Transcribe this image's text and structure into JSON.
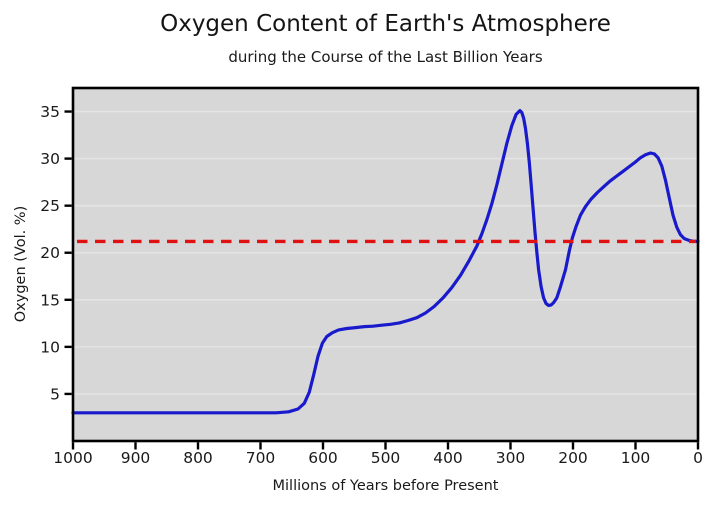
{
  "chart_data": {
    "type": "line",
    "title": "Oxygen Content of Earth's Atmosphere",
    "subtitle": "during the Course of the Last Billion Years",
    "xlabel": "Millions of Years before Present",
    "ylabel": "Oxygen (Vol. %)",
    "xlim": [
      1000,
      0
    ],
    "ylim": [
      0,
      37.5
    ],
    "x_ticks": [
      1000,
      900,
      800,
      700,
      600,
      500,
      400,
      300,
      200,
      100,
      0
    ],
    "y_ticks": [
      5,
      10,
      15,
      20,
      25,
      30,
      35
    ],
    "grid": "horizontal-only",
    "legend": "none",
    "colors": {
      "plot_background": "#d7d7d7",
      "grid_line": "#e4e4e4",
      "axis": "#000000",
      "oxygen_curve": "#1a1acd",
      "reference_line": "#e01111"
    },
    "series": [
      {
        "name": "oxygen-content-curve",
        "type": "line",
        "color": "#1a1acd",
        "stroke_width": 3.2,
        "points": [
          [
            1000,
            3.0
          ],
          [
            950,
            3.0
          ],
          [
            900,
            3.0
          ],
          [
            850,
            3.0
          ],
          [
            800,
            3.0
          ],
          [
            750,
            3.0
          ],
          [
            700,
            3.0
          ],
          [
            675,
            3.0
          ],
          [
            655,
            3.1
          ],
          [
            640,
            3.4
          ],
          [
            630,
            4.0
          ],
          [
            622,
            5.2
          ],
          [
            615,
            7.0
          ],
          [
            608,
            9.0
          ],
          [
            601,
            10.4
          ],
          [
            594,
            11.1
          ],
          [
            585,
            11.5
          ],
          [
            575,
            11.8
          ],
          [
            562,
            11.95
          ],
          [
            548,
            12.05
          ],
          [
            534,
            12.15
          ],
          [
            520,
            12.2
          ],
          [
            506,
            12.3
          ],
          [
            492,
            12.4
          ],
          [
            478,
            12.55
          ],
          [
            464,
            12.8
          ],
          [
            450,
            13.1
          ],
          [
            436,
            13.6
          ],
          [
            422,
            14.3
          ],
          [
            408,
            15.2
          ],
          [
            394,
            16.3
          ],
          [
            380,
            17.6
          ],
          [
            366,
            19.2
          ],
          [
            354,
            20.7
          ],
          [
            346,
            22.0
          ],
          [
            338,
            23.5
          ],
          [
            330,
            25.2
          ],
          [
            322,
            27.2
          ],
          [
            314,
            29.4
          ],
          [
            306,
            31.6
          ],
          [
            298,
            33.5
          ],
          [
            291,
            34.7
          ],
          [
            285,
            35.1
          ],
          [
            282,
            34.9
          ],
          [
            279,
            34.3
          ],
          [
            276,
            33.2
          ],
          [
            273,
            31.6
          ],
          [
            270,
            29.6
          ],
          [
            267,
            27.3
          ],
          [
            264,
            24.8
          ],
          [
            261,
            22.3
          ],
          [
            258,
            20.1
          ],
          [
            255,
            18.2
          ],
          [
            251,
            16.4
          ],
          [
            247,
            15.2
          ],
          [
            243,
            14.6
          ],
          [
            239,
            14.4
          ],
          [
            235,
            14.45
          ],
          [
            231,
            14.7
          ],
          [
            226,
            15.2
          ],
          [
            220,
            16.4
          ],
          [
            212,
            18.2
          ],
          [
            206,
            20.2
          ],
          [
            201,
            21.6
          ],
          [
            195,
            22.8
          ],
          [
            188,
            24.0
          ],
          [
            180,
            24.9
          ],
          [
            171,
            25.7
          ],
          [
            161,
            26.4
          ],
          [
            151,
            27.0
          ],
          [
            141,
            27.6
          ],
          [
            131,
            28.1
          ],
          [
            121,
            28.6
          ],
          [
            111,
            29.1
          ],
          [
            101,
            29.6
          ],
          [
            92,
            30.1
          ],
          [
            84,
            30.4
          ],
          [
            76,
            30.6
          ],
          [
            70,
            30.5
          ],
          [
            64,
            30.1
          ],
          [
            58,
            29.2
          ],
          [
            52,
            27.7
          ],
          [
            46,
            25.8
          ],
          [
            40,
            24.0
          ],
          [
            34,
            22.7
          ],
          [
            28,
            21.9
          ],
          [
            22,
            21.5
          ],
          [
            14,
            21.3
          ],
          [
            7,
            21.2
          ],
          [
            0,
            21.2
          ]
        ]
      },
      {
        "name": "reference-line-21-percent",
        "type": "horizontal-dashed-line",
        "color": "#e01111",
        "stroke_width": 3.4,
        "dash": [
          10.5,
          7.5
        ],
        "value": 21.2
      }
    ]
  }
}
